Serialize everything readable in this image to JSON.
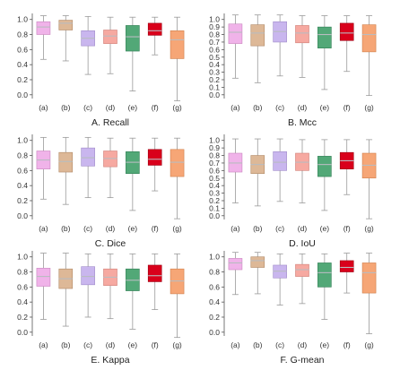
{
  "chart_data": [
    {
      "type": "box",
      "title": "A. Recall",
      "categories": [
        "(a)",
        "(b)",
        "(c)",
        "(d)",
        "(e)",
        "(f)",
        "(g)"
      ],
      "ylim": [
        -0.05,
        1.08
      ],
      "yticks": [
        0.0,
        0.2,
        0.4,
        0.6,
        0.8,
        1.0
      ],
      "grid": false,
      "boxes": [
        {
          "min": 0.47,
          "q1": 0.8,
          "median": 0.9,
          "q3": 0.97,
          "max": 1.05
        },
        {
          "min": 0.45,
          "q1": 0.86,
          "median": 0.95,
          "q3": 0.99,
          "max": 1.05
        },
        {
          "min": 0.27,
          "q1": 0.65,
          "median": 0.75,
          "q3": 0.85,
          "max": 1.04
        },
        {
          "min": 0.28,
          "q1": 0.68,
          "median": 0.78,
          "q3": 0.86,
          "max": 1.03
        },
        {
          "min": 0.05,
          "q1": 0.58,
          "median": 0.77,
          "q3": 0.92,
          "max": 1.03
        },
        {
          "min": 0.53,
          "q1": 0.79,
          "median": 0.85,
          "q3": 0.95,
          "max": 1.03
        },
        {
          "min": -0.08,
          "q1": 0.48,
          "median": 0.73,
          "q3": 0.85,
          "max": 1.03
        }
      ]
    },
    {
      "type": "box",
      "title": "B. Mcc",
      "categories": [
        "(a)",
        "(b)",
        "(c)",
        "(d)",
        "(e)",
        "(f)",
        "(g)"
      ],
      "ylim": [
        -0.05,
        1.08
      ],
      "yticks": [
        0.0,
        0.1,
        0.2,
        0.3,
        0.4,
        0.5,
        0.6,
        0.7,
        0.8,
        0.9,
        1.0
      ],
      "grid": false,
      "boxes": [
        {
          "min": 0.22,
          "q1": 0.68,
          "median": 0.83,
          "q3": 0.94,
          "max": 1.06
        },
        {
          "min": 0.16,
          "q1": 0.65,
          "median": 0.82,
          "q3": 0.93,
          "max": 1.06
        },
        {
          "min": 0.25,
          "q1": 0.7,
          "median": 0.84,
          "q3": 0.97,
          "max": 1.06
        },
        {
          "min": 0.23,
          "q1": 0.69,
          "median": 0.82,
          "q3": 0.92,
          "max": 1.05
        },
        {
          "min": 0.07,
          "q1": 0.62,
          "median": 0.8,
          "q3": 0.9,
          "max": 1.05
        },
        {
          "min": 0.31,
          "q1": 0.72,
          "median": 0.82,
          "q3": 0.95,
          "max": 1.05
        },
        {
          "min": -0.01,
          "q1": 0.57,
          "median": 0.8,
          "q3": 0.93,
          "max": 1.05
        }
      ]
    },
    {
      "type": "box",
      "title": "C. Dice",
      "categories": [
        "(a)",
        "(b)",
        "(c)",
        "(d)",
        "(e)",
        "(f)",
        "(g)"
      ],
      "ylim": [
        -0.05,
        1.08
      ],
      "yticks": [
        0.0,
        0.2,
        0.4,
        0.6,
        0.8,
        1.0
      ],
      "grid": false,
      "boxes": [
        {
          "min": 0.22,
          "q1": 0.62,
          "median": 0.74,
          "q3": 0.86,
          "max": 1.04
        },
        {
          "min": 0.15,
          "q1": 0.58,
          "median": 0.72,
          "q3": 0.84,
          "max": 1.04
        },
        {
          "min": 0.24,
          "q1": 0.66,
          "median": 0.77,
          "q3": 0.9,
          "max": 1.04
        },
        {
          "min": 0.24,
          "q1": 0.65,
          "median": 0.76,
          "q3": 0.86,
          "max": 1.03
        },
        {
          "min": 0.07,
          "q1": 0.56,
          "median": 0.71,
          "q3": 0.85,
          "max": 1.03
        },
        {
          "min": 0.33,
          "q1": 0.67,
          "median": 0.75,
          "q3": 0.88,
          "max": 1.03
        },
        {
          "min": -0.04,
          "q1": 0.52,
          "median": 0.71,
          "q3": 0.88,
          "max": 1.03
        }
      ]
    },
    {
      "type": "box",
      "title": "D. IoU",
      "categories": [
        "(a)",
        "(b)",
        "(c)",
        "(d)",
        "(e)",
        "(f)",
        "(g)"
      ],
      "ylim": [
        -0.05,
        1.08
      ],
      "yticks": [
        0.0,
        0.1,
        0.2,
        0.3,
        0.4,
        0.5,
        0.6,
        0.7,
        0.8,
        0.9,
        1.0
      ],
      "grid": false,
      "boxes": [
        {
          "min": 0.17,
          "q1": 0.58,
          "median": 0.7,
          "q3": 0.83,
          "max": 1.02
        },
        {
          "min": 0.13,
          "q1": 0.56,
          "median": 0.68,
          "q3": 0.8,
          "max": 1.02
        },
        {
          "min": 0.19,
          "q1": 0.6,
          "median": 0.71,
          "q3": 0.85,
          "max": 1.02
        },
        {
          "min": 0.17,
          "q1": 0.6,
          "median": 0.71,
          "q3": 0.83,
          "max": 1.01
        },
        {
          "min": 0.07,
          "q1": 0.52,
          "median": 0.68,
          "q3": 0.79,
          "max": 1.01
        },
        {
          "min": 0.28,
          "q1": 0.62,
          "median": 0.73,
          "q3": 0.84,
          "max": 1.01
        },
        {
          "min": -0.04,
          "q1": 0.5,
          "median": 0.67,
          "q3": 0.83,
          "max": 1.01
        }
      ]
    },
    {
      "type": "box",
      "title": "E. Kappa",
      "categories": [
        "(a)",
        "(b)",
        "(c)",
        "(d)",
        "(e)",
        "(f)",
        "(g)"
      ],
      "ylim": [
        -0.05,
        1.08
      ],
      "yticks": [
        0.0,
        0.2,
        0.4,
        0.6,
        0.8,
        1.0
      ],
      "grid": false,
      "boxes": [
        {
          "min": 0.17,
          "q1": 0.61,
          "median": 0.74,
          "q3": 0.85,
          "max": 1.05
        },
        {
          "min": 0.08,
          "q1": 0.58,
          "median": 0.71,
          "q3": 0.84,
          "max": 1.05
        },
        {
          "min": 0.2,
          "q1": 0.63,
          "median": 0.74,
          "q3": 0.87,
          "max": 1.04
        },
        {
          "min": 0.18,
          "q1": 0.62,
          "median": 0.73,
          "q3": 0.84,
          "max": 1.04
        },
        {
          "min": 0.04,
          "q1": 0.55,
          "median": 0.69,
          "q3": 0.84,
          "max": 1.04
        },
        {
          "min": 0.3,
          "q1": 0.67,
          "median": 0.75,
          "q3": 0.89,
          "max": 1.04
        },
        {
          "min": -0.07,
          "q1": 0.51,
          "median": 0.68,
          "q3": 0.84,
          "max": 1.04
        }
      ]
    },
    {
      "type": "box",
      "title": "F. G-mean",
      "categories": [
        "(a)",
        "(b)",
        "(c)",
        "(d)",
        "(e)",
        "(f)",
        "(g)"
      ],
      "ylim": [
        -0.05,
        1.08
      ],
      "yticks": [
        0.0,
        0.2,
        0.4,
        0.6,
        0.8,
        1.0
      ],
      "grid": false,
      "boxes": [
        {
          "min": 0.5,
          "q1": 0.83,
          "median": 0.92,
          "q3": 0.98,
          "max": 1.06
        },
        {
          "min": 0.51,
          "q1": 0.86,
          "median": 0.95,
          "q3": 1.0,
          "max": 1.06
        },
        {
          "min": 0.36,
          "q1": 0.72,
          "median": 0.81,
          "q3": 0.89,
          "max": 1.04
        },
        {
          "min": 0.38,
          "q1": 0.74,
          "median": 0.83,
          "q3": 0.9,
          "max": 1.04
        },
        {
          "min": 0.17,
          "q1": 0.6,
          "median": 0.79,
          "q3": 0.92,
          "max": 1.04
        },
        {
          "min": 0.52,
          "q1": 0.8,
          "median": 0.86,
          "q3": 0.95,
          "max": 1.05
        },
        {
          "min": -0.02,
          "q1": 0.52,
          "median": 0.79,
          "q3": 0.92,
          "max": 1.05
        }
      ]
    }
  ],
  "colors": {
    "fills": [
      "#f0b3e9",
      "#ddb897",
      "#c9b6ee",
      "#f6a9a1",
      "#52a877",
      "#d9001b",
      "#f6a676"
    ],
    "edges": [
      "#c986bf",
      "#b08864",
      "#9f8ac9",
      "#d07f77",
      "#2e7d52",
      "#9c0013",
      "#cf7f4a"
    ],
    "median": "#b8bcc0",
    "whisker": "#9a9a9a",
    "axis": "#555555"
  }
}
